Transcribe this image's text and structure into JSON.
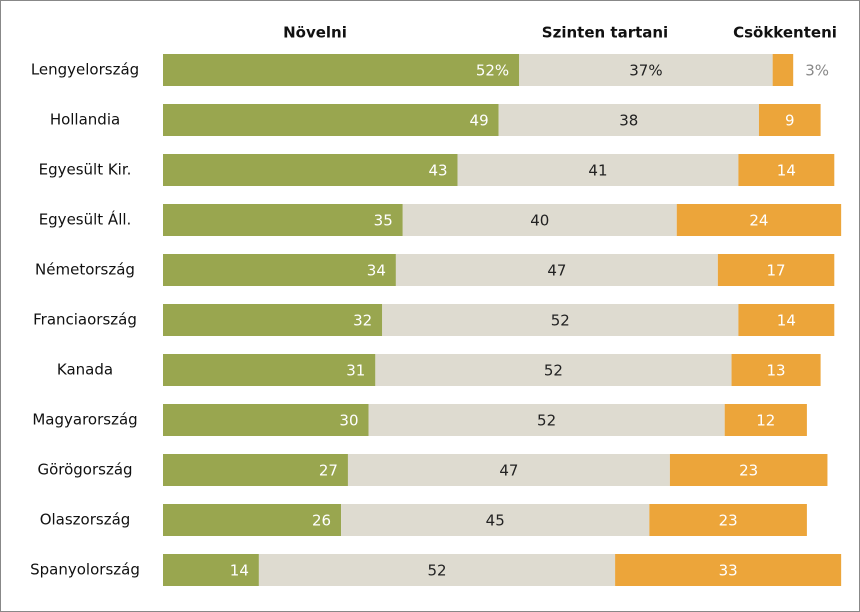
{
  "chart_data": {
    "type": "stacked-bar-horizontal",
    "categories": [
      "Lengyelország",
      "Hollandia",
      "Egyesült Kir.",
      "Egyesült Áll.",
      "Németország",
      "Franciaország",
      "Kanada",
      "Magyarország",
      "Görögország",
      "Olaszország",
      "Spanyolország"
    ],
    "series": [
      {
        "name": "Növelni",
        "color": "#99a64f",
        "values": [
          52,
          49,
          43,
          35,
          34,
          32,
          31,
          30,
          27,
          26,
          14
        ],
        "value_labels": [
          "52%",
          "49",
          "43",
          "35",
          "34",
          "32",
          "31",
          "30",
          "27",
          "26",
          "14"
        ]
      },
      {
        "name": "Szinten tartani",
        "color": "#dedbd0",
        "values": [
          37,
          38,
          41,
          40,
          47,
          52,
          52,
          52,
          47,
          45,
          52
        ],
        "value_labels": [
          "37%",
          "38",
          "41",
          "40",
          "47",
          "52",
          "52",
          "52",
          "47",
          "45",
          "52"
        ]
      },
      {
        "name": "Csökkenteni",
        "color": "#eca53a",
        "values": [
          3,
          9,
          14,
          24,
          17,
          14,
          13,
          12,
          23,
          23,
          33
        ],
        "value_labels": [
          "3%",
          "9",
          "14",
          "24",
          "17",
          "14",
          "13",
          "12",
          "23",
          "23",
          "33"
        ]
      }
    ]
  }
}
